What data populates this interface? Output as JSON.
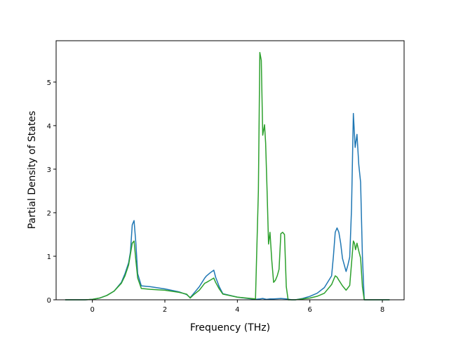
{
  "chart_data": {
    "type": "line",
    "title": "",
    "xlabel": "Frequency (THz)",
    "ylabel": "Partial Density of States",
    "xlim": [
      -1.0,
      8.6
    ],
    "ylim": [
      0,
      5.95
    ],
    "xticks": [
      0,
      2,
      4,
      6,
      8
    ],
    "yticks": [
      0,
      1,
      2,
      3,
      4,
      5
    ],
    "grid": false,
    "legend": "none",
    "series": [
      {
        "color": "#1f77b4",
        "x": [
          -0.75,
          -0.2,
          0.0,
          0.2,
          0.4,
          0.6,
          0.8,
          0.9,
          1.0,
          1.05,
          1.1,
          1.15,
          1.2,
          1.25,
          1.35,
          1.6,
          2.0,
          2.4,
          2.6,
          2.7,
          2.8,
          2.95,
          3.1,
          3.15,
          3.25,
          3.35,
          3.4,
          3.5,
          3.6,
          4.0,
          4.5,
          4.62,
          4.7,
          4.8,
          4.9,
          5.0,
          5.2,
          5.35,
          5.5,
          5.6,
          5.8,
          6.0,
          6.2,
          6.4,
          6.6,
          6.65,
          6.7,
          6.75,
          6.8,
          6.85,
          6.9,
          6.95,
          7.0,
          7.05,
          7.1,
          7.15,
          7.2,
          7.25,
          7.3,
          7.35,
          7.4,
          7.45,
          7.5,
          7.55,
          8.2
        ],
        "y": [
          0.0,
          0.0,
          0.01,
          0.04,
          0.1,
          0.2,
          0.4,
          0.6,
          0.85,
          1.1,
          1.72,
          1.82,
          1.3,
          0.6,
          0.32,
          0.3,
          0.25,
          0.18,
          0.12,
          0.05,
          0.15,
          0.3,
          0.5,
          0.55,
          0.62,
          0.68,
          0.52,
          0.3,
          0.14,
          0.06,
          0.01,
          0.02,
          0.03,
          0.01,
          0.02,
          0.02,
          0.03,
          0.02,
          0.0,
          0.0,
          0.03,
          0.08,
          0.15,
          0.28,
          0.55,
          1.0,
          1.55,
          1.65,
          1.55,
          1.3,
          0.95,
          0.8,
          0.65,
          0.8,
          0.98,
          2.1,
          4.28,
          3.5,
          3.8,
          3.1,
          2.7,
          1.0,
          0.0,
          0.0,
          0.0
        ]
      },
      {
        "color": "#2ca02c",
        "x": [
          -0.75,
          -0.2,
          0.0,
          0.2,
          0.4,
          0.6,
          0.8,
          0.9,
          1.0,
          1.05,
          1.1,
          1.15,
          1.2,
          1.25,
          1.35,
          1.6,
          2.0,
          2.4,
          2.6,
          2.7,
          2.8,
          2.95,
          3.1,
          3.15,
          3.25,
          3.35,
          3.4,
          3.5,
          3.6,
          4.0,
          4.5,
          4.58,
          4.62,
          4.66,
          4.7,
          4.75,
          4.78,
          4.82,
          4.86,
          4.9,
          4.95,
          5.0,
          5.05,
          5.1,
          5.15,
          5.2,
          5.25,
          5.3,
          5.35,
          5.4,
          5.45,
          5.5,
          5.6,
          5.8,
          6.0,
          6.2,
          6.4,
          6.6,
          6.7,
          6.75,
          6.8,
          6.9,
          7.0,
          7.1,
          7.2,
          7.23,
          7.26,
          7.3,
          7.35,
          7.4,
          7.45,
          7.5,
          7.55,
          8.2
        ],
        "y": [
          0.0,
          0.0,
          0.01,
          0.04,
          0.1,
          0.2,
          0.38,
          0.55,
          0.8,
          1.05,
          1.3,
          1.35,
          0.9,
          0.5,
          0.26,
          0.24,
          0.22,
          0.17,
          0.13,
          0.04,
          0.12,
          0.22,
          0.38,
          0.4,
          0.45,
          0.5,
          0.4,
          0.25,
          0.13,
          0.06,
          0.02,
          2.5,
          5.68,
          5.5,
          3.78,
          4.02,
          3.6,
          2.5,
          1.28,
          1.55,
          0.9,
          0.4,
          0.45,
          0.55,
          0.7,
          1.52,
          1.55,
          1.5,
          0.3,
          0.0,
          0.0,
          0.0,
          0.0,
          0.02,
          0.04,
          0.08,
          0.15,
          0.35,
          0.55,
          0.52,
          0.45,
          0.32,
          0.22,
          0.33,
          1.35,
          1.3,
          1.15,
          1.3,
          1.12,
          0.96,
          0.3,
          0.0,
          0.0,
          0.0
        ]
      }
    ]
  }
}
